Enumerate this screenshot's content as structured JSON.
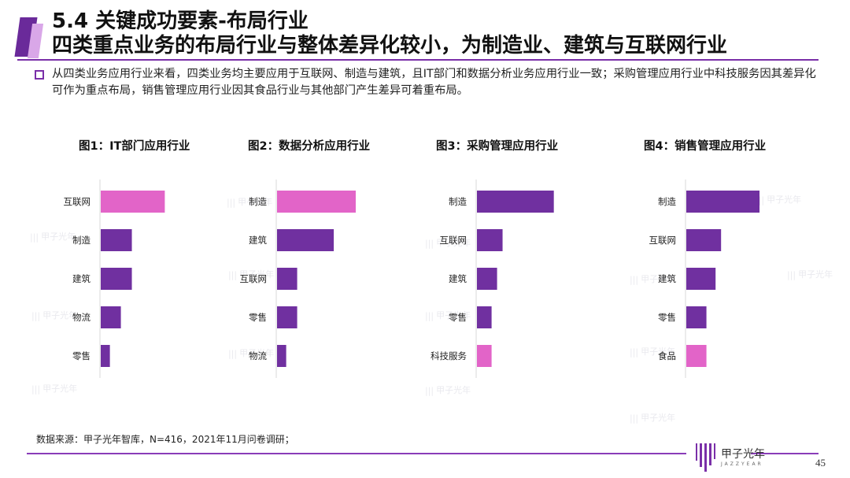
{
  "header": {
    "title_line1": "5.4 关键成功要素-布局行业",
    "title_line2": "四类重点业务的布局行业与整体差异化较小，为制造业、建筑与互联网行业"
  },
  "summary": {
    "text": "从四类业务应用行业来看，四类业务均主要应用于互联网、制造与建筑，且IT部门和数据分析业务应用行业一致；采购管理应用行业中科技服务因其差异化可作为重点布局，销售管理应用行业因其食品行业与其他部门产生差异可着重布局。"
  },
  "colors": {
    "purple": "#7030a0",
    "pink": "#e264c8",
    "accent": "#7a2fa8"
  },
  "chart_data": [
    {
      "type": "bar",
      "orientation": "horizontal",
      "title": "图1：IT部门应用行业",
      "categories": [
        "互联网",
        "制造",
        "建筑",
        "物流",
        "零售"
      ],
      "values": [
        35,
        17,
        17,
        11,
        5
      ],
      "highlight": [
        true,
        false,
        false,
        false,
        false
      ],
      "xlim": [
        0,
        50
      ]
    },
    {
      "type": "bar",
      "orientation": "horizontal",
      "title": "图2：数据分析应用行业",
      "categories": [
        "制造",
        "建筑",
        "互联网",
        "零售",
        "物流"
      ],
      "values": [
        43,
        31,
        11,
        11,
        5
      ],
      "highlight": [
        true,
        false,
        false,
        false,
        false
      ],
      "xlim": [
        0,
        50
      ]
    },
    {
      "type": "bar",
      "orientation": "horizontal",
      "title": "图3：采购管理应用行业",
      "categories": [
        "制造",
        "互联网",
        "建筑",
        "零售",
        "科技服务"
      ],
      "values": [
        42,
        14,
        11,
        8,
        8
      ],
      "highlight": [
        false,
        false,
        false,
        false,
        true
      ],
      "xlim": [
        0,
        50
      ]
    },
    {
      "type": "bar",
      "orientation": "horizontal",
      "title": "图4：销售管理应用行业",
      "categories": [
        "制造",
        "互联网",
        "建筑",
        "零售",
        "食品"
      ],
      "values": [
        40,
        19,
        16,
        11,
        11
      ],
      "highlight": [
        false,
        false,
        false,
        false,
        true
      ],
      "xlim": [
        0,
        50
      ]
    }
  ],
  "footer": {
    "source": "数据来源：甲子光年智库，N=416，2021年11月问卷调研；",
    "logo_text": "甲子光年",
    "logo_sub": "JAZZYEAR",
    "page_number": "45"
  },
  "watermark": {
    "text": "甲子光年"
  }
}
